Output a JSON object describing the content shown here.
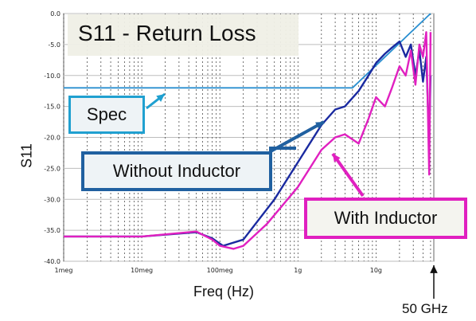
{
  "chart_data": {
    "type": "line",
    "title": "S11 - Return Loss",
    "xlabel": "Freq (Hz)",
    "ylabel": "S11",
    "x_scale": "log",
    "xlim": [
      1000000,
      55000000000
    ],
    "ylim": [
      -40.0,
      0.0
    ],
    "y_ticks": [
      "0.0",
      "-5.0",
      "-10.0",
      "-15.0",
      "-20.0",
      "-25.0",
      "-30.0",
      "-35.0",
      "-40.0"
    ],
    "y_tick_values": [
      0,
      -5,
      -10,
      -15,
      -20,
      -25,
      -30,
      -35,
      -40
    ],
    "x_ticks": [
      "1meg",
      "10meg",
      "100meg",
      "1g",
      "10g"
    ],
    "x_tick_values": [
      1000000,
      10000000,
      100000000,
      1000000000,
      10000000000
    ],
    "grid": true,
    "series": [
      {
        "name": "Spec",
        "color": "#2a8fd0",
        "x": [
          1000000,
          5000000000,
          50000000000
        ],
        "y": [
          -12.0,
          -12.0,
          0.0
        ]
      },
      {
        "name": "Without Inductor",
        "color": "#1a2aa0",
        "x": [
          1000000,
          10000000,
          50000000,
          80000000,
          110000000,
          200000000,
          500000000,
          1000000000,
          2000000000,
          3000000000,
          4000000000,
          6000000000,
          8000000000,
          10000000000,
          13000000000,
          16000000000,
          20000000000,
          24000000000,
          28000000000,
          32000000000,
          36000000000,
          40000000000,
          44000000000,
          48000000000,
          50000000000
        ],
        "y": [
          -36.0,
          -36.0,
          -35.3,
          -36.3,
          -37.5,
          -36.5,
          -30.0,
          -24.0,
          -18.0,
          -15.5,
          -15.0,
          -12.5,
          -10.0,
          -8.0,
          -6.5,
          -5.5,
          -4.5,
          -7.0,
          -5.0,
          -10.0,
          -6.0,
          -11.0,
          -7.0,
          -21.0,
          -10.0
        ]
      },
      {
        "name": "With Inductor",
        "color": "#e020c0",
        "x": [
          1000000,
          10000000,
          50000000,
          80000000,
          100000000,
          150000000,
          200000000,
          400000000,
          1000000000,
          2000000000,
          3000000000,
          4000000000,
          6000000000,
          8000000000,
          10000000000,
          13000000000,
          16000000000,
          20000000000,
          24000000000,
          28000000000,
          32000000000,
          36000000000,
          40000000000,
          44000000000,
          48000000000,
          50000000000
        ],
        "y": [
          -36.0,
          -36.0,
          -35.2,
          -36.5,
          -37.5,
          -38.0,
          -37.5,
          -34.0,
          -28.0,
          -22.0,
          -20.0,
          -19.5,
          -21.0,
          -17.0,
          -13.5,
          -15.0,
          -12.0,
          -8.5,
          -10.0,
          -6.0,
          -11.5,
          -5.0,
          -7.0,
          -3.0,
          -26.0,
          -3.0
        ]
      }
    ]
  },
  "labels": {
    "title": "S11 - Return Loss",
    "spec": "Spec",
    "without": "Without Inductor",
    "with": "With Inductor",
    "ylabel": "S11",
    "xlabel": "Freq (Hz)",
    "marker": "50 GHz"
  },
  "colors": {
    "spec": "#2a8fd0",
    "without": "#1a2aa0",
    "with": "#e020c0",
    "arrow_spec": "#20a0d0",
    "arrow_without": "#2060a0",
    "arrow_with": "#e020c0"
  }
}
